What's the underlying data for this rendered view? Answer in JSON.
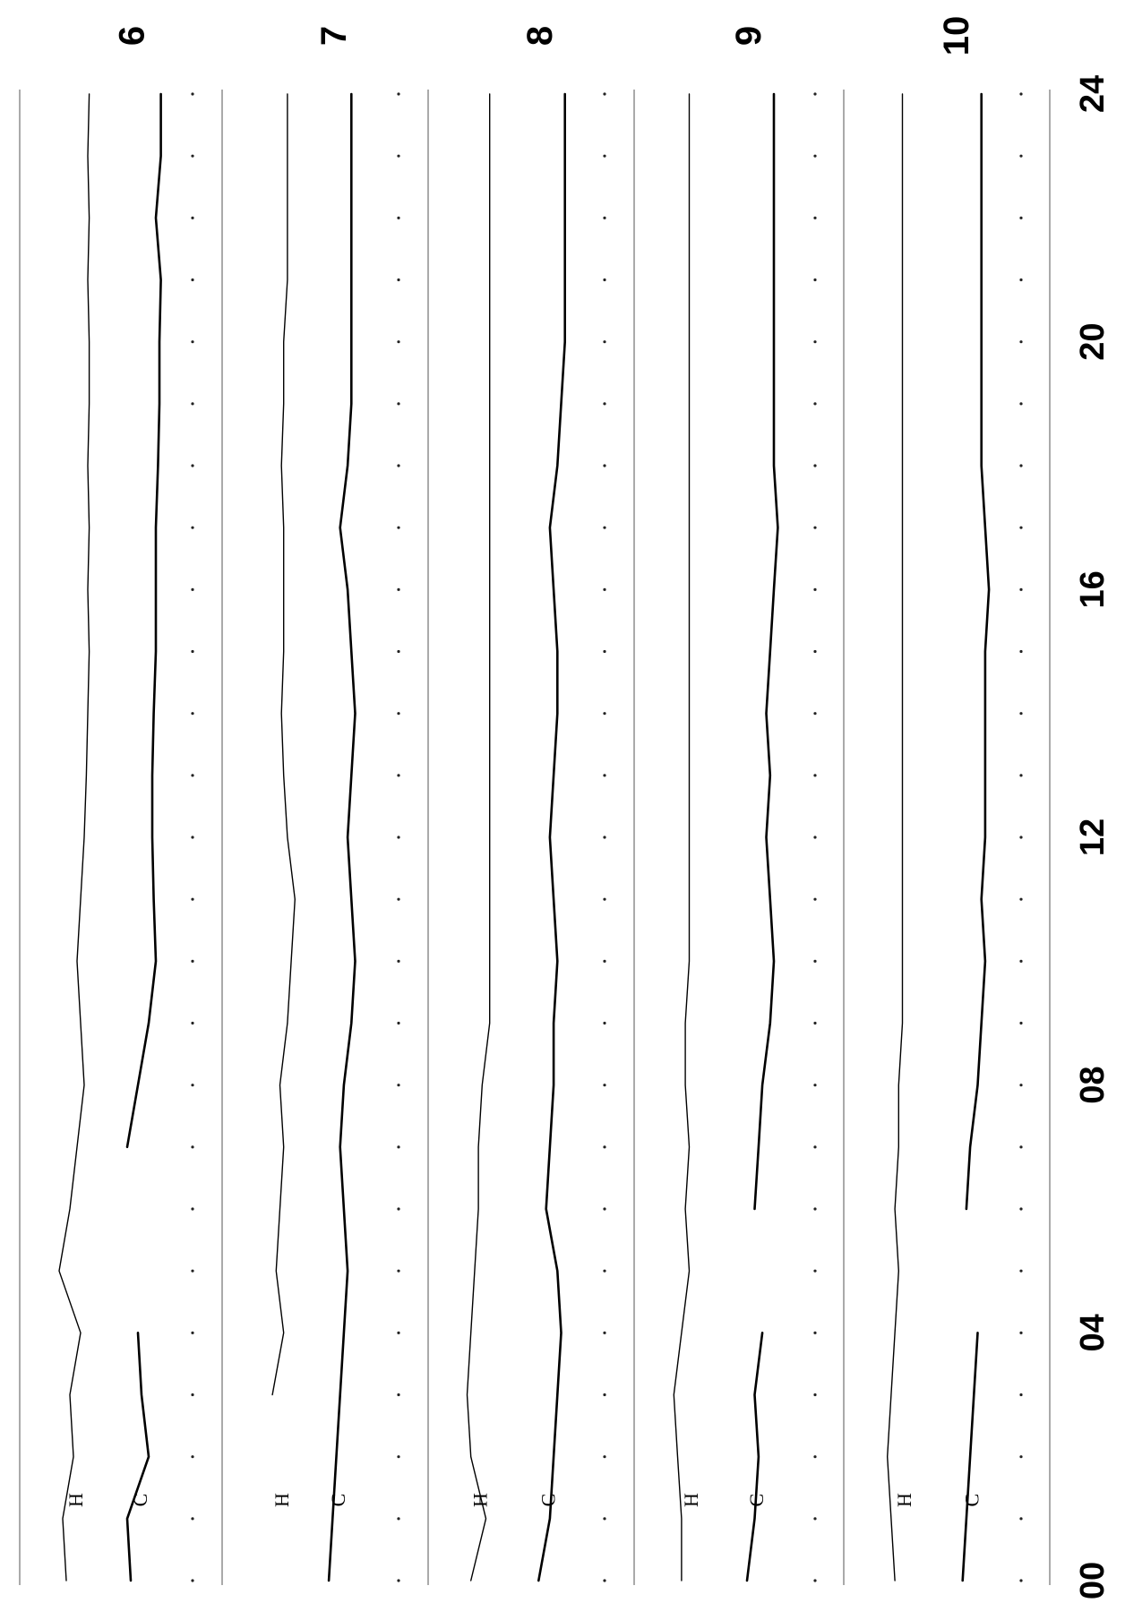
{
  "chart_data": {
    "type": "line",
    "orientation": "rotated-90",
    "x_axis_ticks": [
      "00",
      "04",
      "08",
      "12",
      "16",
      "20",
      "24"
    ],
    "x_range": [
      0,
      24
    ],
    "grid": false,
    "panels": [
      {
        "day": "6",
        "traces": [
          {
            "label": "H",
            "values": [
              0.3,
              0.25,
              0.4,
              0.35,
              0.5,
              0.2,
              0.35,
              0.45,
              0.55,
              0.5,
              0.45,
              0.5,
              0.55,
              0.58,
              0.6,
              0.62,
              0.6,
              0.62,
              0.6,
              0.62,
              0.62,
              0.6,
              0.62,
              0.6,
              0.62
            ]
          },
          {
            "label": "C",
            "values": [
              0.2,
              0.15,
              0.45,
              0.35,
              0.3,
              null,
              null,
              0.15,
              0.3,
              0.45,
              0.55,
              0.52,
              0.5,
              0.5,
              0.52,
              0.55,
              0.55,
              0.55,
              0.58,
              0.6,
              0.6,
              0.62,
              0.55,
              0.62,
              0.62
            ]
          }
        ]
      },
      {
        "day": "7",
        "traces": [
          {
            "label": "H",
            "values": [
              null,
              null,
              null,
              0.4,
              0.55,
              0.45,
              0.5,
              0.55,
              0.5,
              0.6,
              0.65,
              0.7,
              0.6,
              0.55,
              0.52,
              0.55,
              0.55,
              0.55,
              0.52,
              0.55,
              0.55,
              0.6,
              0.6,
              0.6,
              0.6
            ]
          },
          {
            "label": "C",
            "values": [
              0.15,
              0.2,
              0.25,
              0.3,
              0.35,
              0.4,
              0.35,
              0.3,
              0.35,
              0.45,
              0.5,
              0.45,
              0.4,
              0.45,
              0.5,
              0.45,
              0.4,
              0.3,
              0.4,
              0.45,
              0.45,
              0.45,
              0.45,
              0.45,
              0.45
            ]
          }
        ]
      },
      {
        "day": "8",
        "traces": [
          {
            "label": "H",
            "values": [
              0.3,
              0.5,
              0.3,
              0.25,
              0.3,
              0.35,
              0.4,
              0.4,
              0.45,
              0.55,
              0.55,
              0.55,
              0.55,
              0.55,
              0.55,
              0.55,
              0.55,
              0.55,
              0.55,
              0.55,
              0.55,
              0.55,
              0.55,
              0.55,
              0.55
            ]
          },
          {
            "label": "C",
            "values": [
              0.2,
              0.35,
              0.4,
              0.45,
              0.5,
              0.45,
              0.3,
              0.35,
              0.4,
              0.4,
              0.45,
              0.4,
              0.35,
              0.4,
              0.45,
              0.45,
              0.4,
              0.35,
              0.45,
              0.5,
              0.55,
              0.55,
              0.55,
              0.55,
              0.55
            ]
          }
        ]
      },
      {
        "day": "9",
        "traces": [
          {
            "label": "H",
            "values": [
              0.35,
              0.35,
              0.3,
              0.25,
              0.35,
              0.45,
              0.4,
              0.45,
              0.4,
              0.4,
              0.45,
              0.45,
              0.45,
              0.45,
              0.45,
              0.45,
              0.45,
              0.45,
              0.45,
              0.45,
              0.45,
              0.45,
              0.45,
              0.45,
              0.45
            ]
          },
          {
            "label": "C",
            "values": [
              0.2,
              0.3,
              0.35,
              0.3,
              0.4,
              null,
              0.3,
              0.35,
              0.4,
              0.5,
              0.55,
              0.5,
              0.45,
              0.5,
              0.45,
              0.5,
              0.55,
              0.6,
              0.55,
              0.55,
              0.55,
              0.55,
              0.55,
              0.55,
              0.55
            ]
          }
        ]
      },
      {
        "day": "10",
        "traces": [
          {
            "label": "H",
            "values": [
              0.4,
              0.35,
              0.3,
              0.35,
              0.4,
              0.45,
              0.4,
              0.45,
              0.45,
              0.5,
              0.5,
              0.5,
              0.5,
              0.5,
              0.5,
              0.5,
              0.5,
              0.5,
              0.5,
              0.5,
              0.5,
              0.5,
              0.5,
              0.5,
              0.5
            ]
          },
          {
            "label": "C",
            "values": [
              0.3,
              0.35,
              0.4,
              0.45,
              0.5,
              null,
              0.35,
              0.4,
              0.5,
              0.55,
              0.6,
              0.55,
              0.6,
              0.6,
              0.6,
              0.6,
              0.65,
              0.6,
              0.55,
              0.55,
              0.55,
              0.55,
              0.55,
              0.55,
              0.55
            ]
          }
        ]
      }
    ]
  }
}
